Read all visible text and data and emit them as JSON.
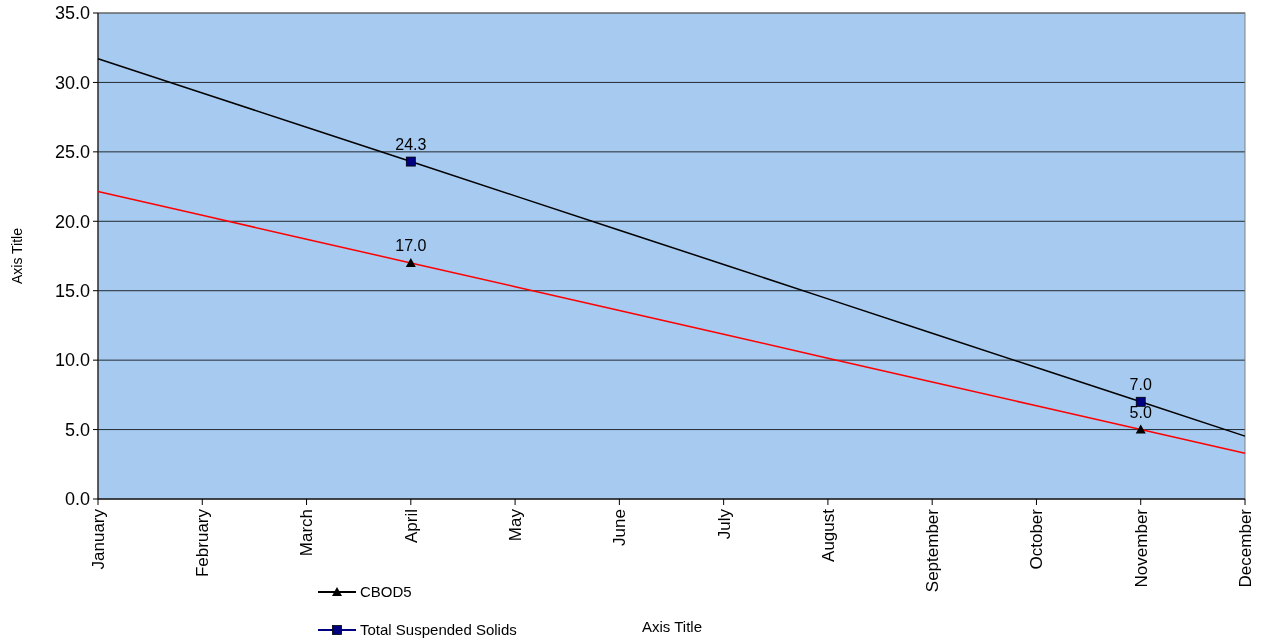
{
  "chart_data": {
    "type": "line",
    "xlabel": "Axis Title",
    "ylabel": "Axis Title",
    "categories": [
      "January",
      "February",
      "March",
      "April",
      "May",
      "June",
      "July",
      "August",
      "September",
      "October",
      "November",
      "December"
    ],
    "series": [
      {
        "name": "CBOD5",
        "type": "scatter",
        "marker": "triangle",
        "color": "#000000",
        "values": [
          null,
          null,
          null,
          17.0,
          null,
          null,
          null,
          null,
          null,
          null,
          5.0,
          null
        ],
        "value_labels": [
          null,
          null,
          null,
          "17.0",
          null,
          null,
          null,
          null,
          null,
          null,
          "5.0",
          null
        ]
      },
      {
        "name": "Total Suspended Solids",
        "type": "scatter",
        "marker": "square",
        "color": "#000080",
        "values": [
          null,
          null,
          null,
          24.3,
          null,
          null,
          null,
          null,
          null,
          null,
          7.0,
          null
        ],
        "value_labels": [
          null,
          null,
          null,
          "24.3",
          null,
          null,
          null,
          null,
          null,
          null,
          "7.0",
          null
        ]
      },
      {
        "color": "#ff0000",
        "marker": "none",
        "values": [
          22.14,
          20.43,
          18.71,
          17.0,
          15.29,
          13.57,
          11.86,
          10.14,
          8.43,
          6.71,
          5.0,
          3.29
        ]
      },
      {
        "color": "#000000",
        "marker": "none",
        "values": [
          31.71,
          29.24,
          26.77,
          24.3,
          21.83,
          19.36,
          16.89,
          14.41,
          11.94,
          9.47,
          7.0,
          4.53
        ]
      }
    ],
    "ylim": [
      0,
      35
    ],
    "yticks": [
      {
        "value": 0,
        "label": "0.0"
      },
      {
        "value": 5,
        "label": "5.0"
      },
      {
        "value": 10,
        "label": "10.0"
      },
      {
        "value": 15,
        "label": "15.0"
      },
      {
        "value": 20,
        "label": "20.0"
      },
      {
        "value": 25,
        "label": "25.0"
      },
      {
        "value": 30,
        "label": "30.0"
      },
      {
        "value": 35,
        "label": "35.0"
      }
    ],
    "grid": "y",
    "legend": "bottom left"
  }
}
